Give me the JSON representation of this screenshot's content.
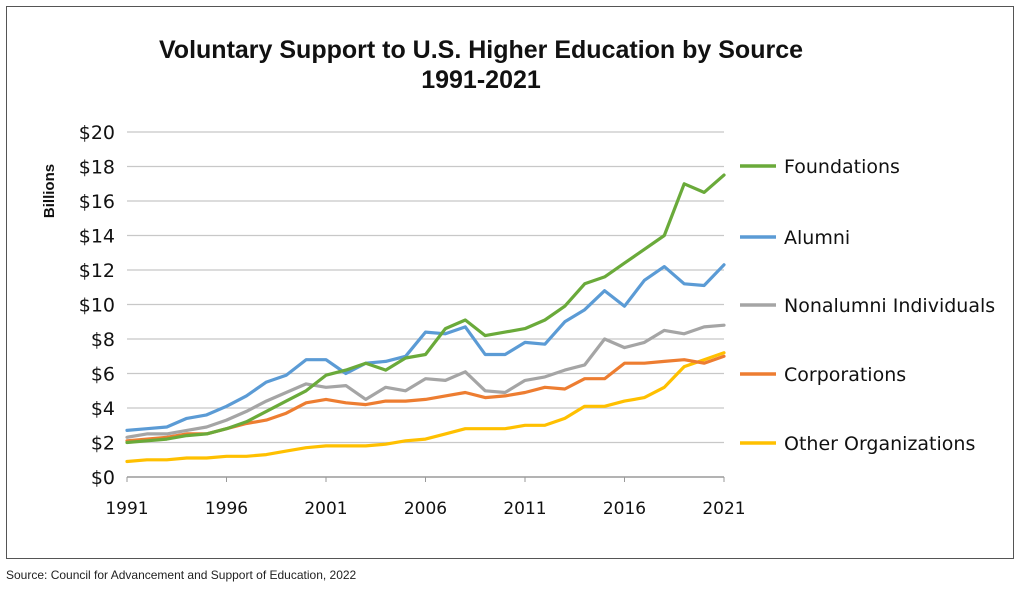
{
  "source": "Source: Council for Advancement and Support of Education, 2022",
  "chart_data": {
    "type": "line",
    "title": "Voluntary Support to U.S. Higher Education by Source",
    "subtitle": "1991-2021",
    "ylabel": "Billions",
    "xlabel": "",
    "xlim": [
      1991,
      2021
    ],
    "ylim": [
      0,
      20
    ],
    "y_ticks": [
      0,
      2,
      4,
      6,
      8,
      10,
      12,
      14,
      16,
      18,
      20
    ],
    "y_tick_labels": [
      "$0",
      "$2",
      "$4",
      "$6",
      "$8",
      "$10",
      "$12",
      "$14",
      "$16",
      "$18",
      "$20"
    ],
    "x_ticks": [
      1991,
      1996,
      2001,
      2006,
      2011,
      2016,
      2021
    ],
    "x_tick_labels": [
      "1991",
      "1996",
      "2001",
      "2006",
      "2011",
      "2016",
      "2021"
    ],
    "grid": true,
    "legend_position": "right",
    "x": [
      1991,
      1992,
      1993,
      1994,
      1995,
      1996,
      1997,
      1998,
      1999,
      2000,
      2001,
      2002,
      2003,
      2004,
      2005,
      2006,
      2007,
      2008,
      2009,
      2010,
      2011,
      2012,
      2013,
      2014,
      2015,
      2016,
      2017,
      2018,
      2019,
      2020,
      2021
    ],
    "series": [
      {
        "name": "Foundations",
        "color": "#6aaa3a",
        "values": [
          2.0,
          2.1,
          2.2,
          2.4,
          2.5,
          2.8,
          3.2,
          3.8,
          4.4,
          5.0,
          5.9,
          6.2,
          6.6,
          6.2,
          6.9,
          7.1,
          8.6,
          9.1,
          8.2,
          8.4,
          8.6,
          9.1,
          9.9,
          11.2,
          11.6,
          12.4,
          13.2,
          14.0,
          17.0,
          16.5,
          17.5
        ]
      },
      {
        "name": "Alumni",
        "color": "#5b9bd5",
        "values": [
          2.7,
          2.8,
          2.9,
          3.4,
          3.6,
          4.1,
          4.7,
          5.5,
          5.9,
          6.8,
          6.8,
          6.0,
          6.6,
          6.7,
          7.0,
          8.4,
          8.3,
          8.7,
          7.1,
          7.1,
          7.8,
          7.7,
          9.0,
          9.7,
          10.8,
          9.9,
          11.4,
          12.2,
          11.2,
          11.1,
          12.3
        ]
      },
      {
        "name": "Nonalumni Individuals",
        "color": "#a5a5a5",
        "values": [
          2.3,
          2.5,
          2.5,
          2.7,
          2.9,
          3.3,
          3.8,
          4.4,
          4.9,
          5.4,
          5.2,
          5.3,
          4.5,
          5.2,
          5.0,
          5.7,
          5.6,
          6.1,
          5.0,
          4.9,
          5.6,
          5.8,
          6.2,
          6.5,
          8.0,
          7.5,
          7.8,
          8.5,
          8.3,
          8.7,
          8.8
        ]
      },
      {
        "name": "Corporations",
        "color": "#ed7d31",
        "values": [
          2.1,
          2.2,
          2.3,
          2.5,
          2.5,
          2.8,
          3.1,
          3.3,
          3.7,
          4.3,
          4.5,
          4.3,
          4.2,
          4.4,
          4.4,
          4.5,
          4.7,
          4.9,
          4.6,
          4.7,
          4.9,
          5.2,
          5.1,
          5.7,
          5.7,
          6.6,
          6.6,
          6.7,
          6.8,
          6.6,
          7.0
        ]
      },
      {
        "name": "Other Organizations",
        "color": "#ffc000",
        "values": [
          0.9,
          1.0,
          1.0,
          1.1,
          1.1,
          1.2,
          1.2,
          1.3,
          1.5,
          1.7,
          1.8,
          1.8,
          1.8,
          1.9,
          2.1,
          2.2,
          2.5,
          2.8,
          2.8,
          2.8,
          3.0,
          3.0,
          3.4,
          4.1,
          4.1,
          4.4,
          4.6,
          5.2,
          6.4,
          6.8,
          7.2
        ]
      }
    ]
  }
}
